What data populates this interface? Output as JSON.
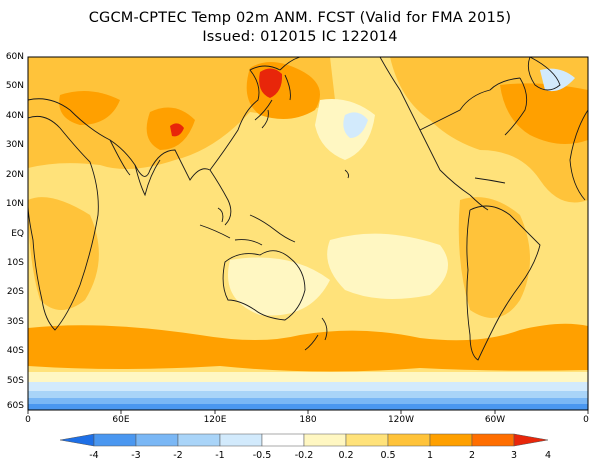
{
  "title": {
    "line1": "CGCM-CPTEC Temp 02m ANM. FCST  (Valid for FMA 2015)",
    "line2": "Issued:  012015 IC 122014"
  },
  "latitude_labels": [
    "60N",
    "50N",
    "40N",
    "30N",
    "20N",
    "10N",
    "EQ",
    "10S",
    "20S",
    "30S",
    "40S",
    "50S",
    "60S"
  ],
  "longitude_labels": [
    "0",
    "60E",
    "120E",
    "180",
    "120W",
    "60W",
    "0"
  ],
  "colorbar": {
    "labels": [
      "-4",
      "-3",
      "-2",
      "-1",
      "-0.5",
      "-0.2",
      "0.2",
      "0.5",
      "1",
      "2",
      "3",
      "4"
    ],
    "colors": [
      "#1e6fe6",
      "#4a97f0",
      "#7ab7f5",
      "#a9d4f8",
      "#d2eafc",
      "#ffffff",
      "#fff7c2",
      "#ffe27a",
      "#ffc33a",
      "#ffa000",
      "#ff6e00",
      "#e8260a"
    ]
  },
  "colors": {
    "base_anomaly": "#ffe27a",
    "warm_anomaly": "#ffc33a",
    "strong_warm": "#ffa000",
    "hot_spot": "#e8260a",
    "neutral": "#fff7c2",
    "cool_anomaly": "#d2eafc",
    "cold_anomaly": "#7ab7f5",
    "coast": "#1a1a1a"
  }
}
